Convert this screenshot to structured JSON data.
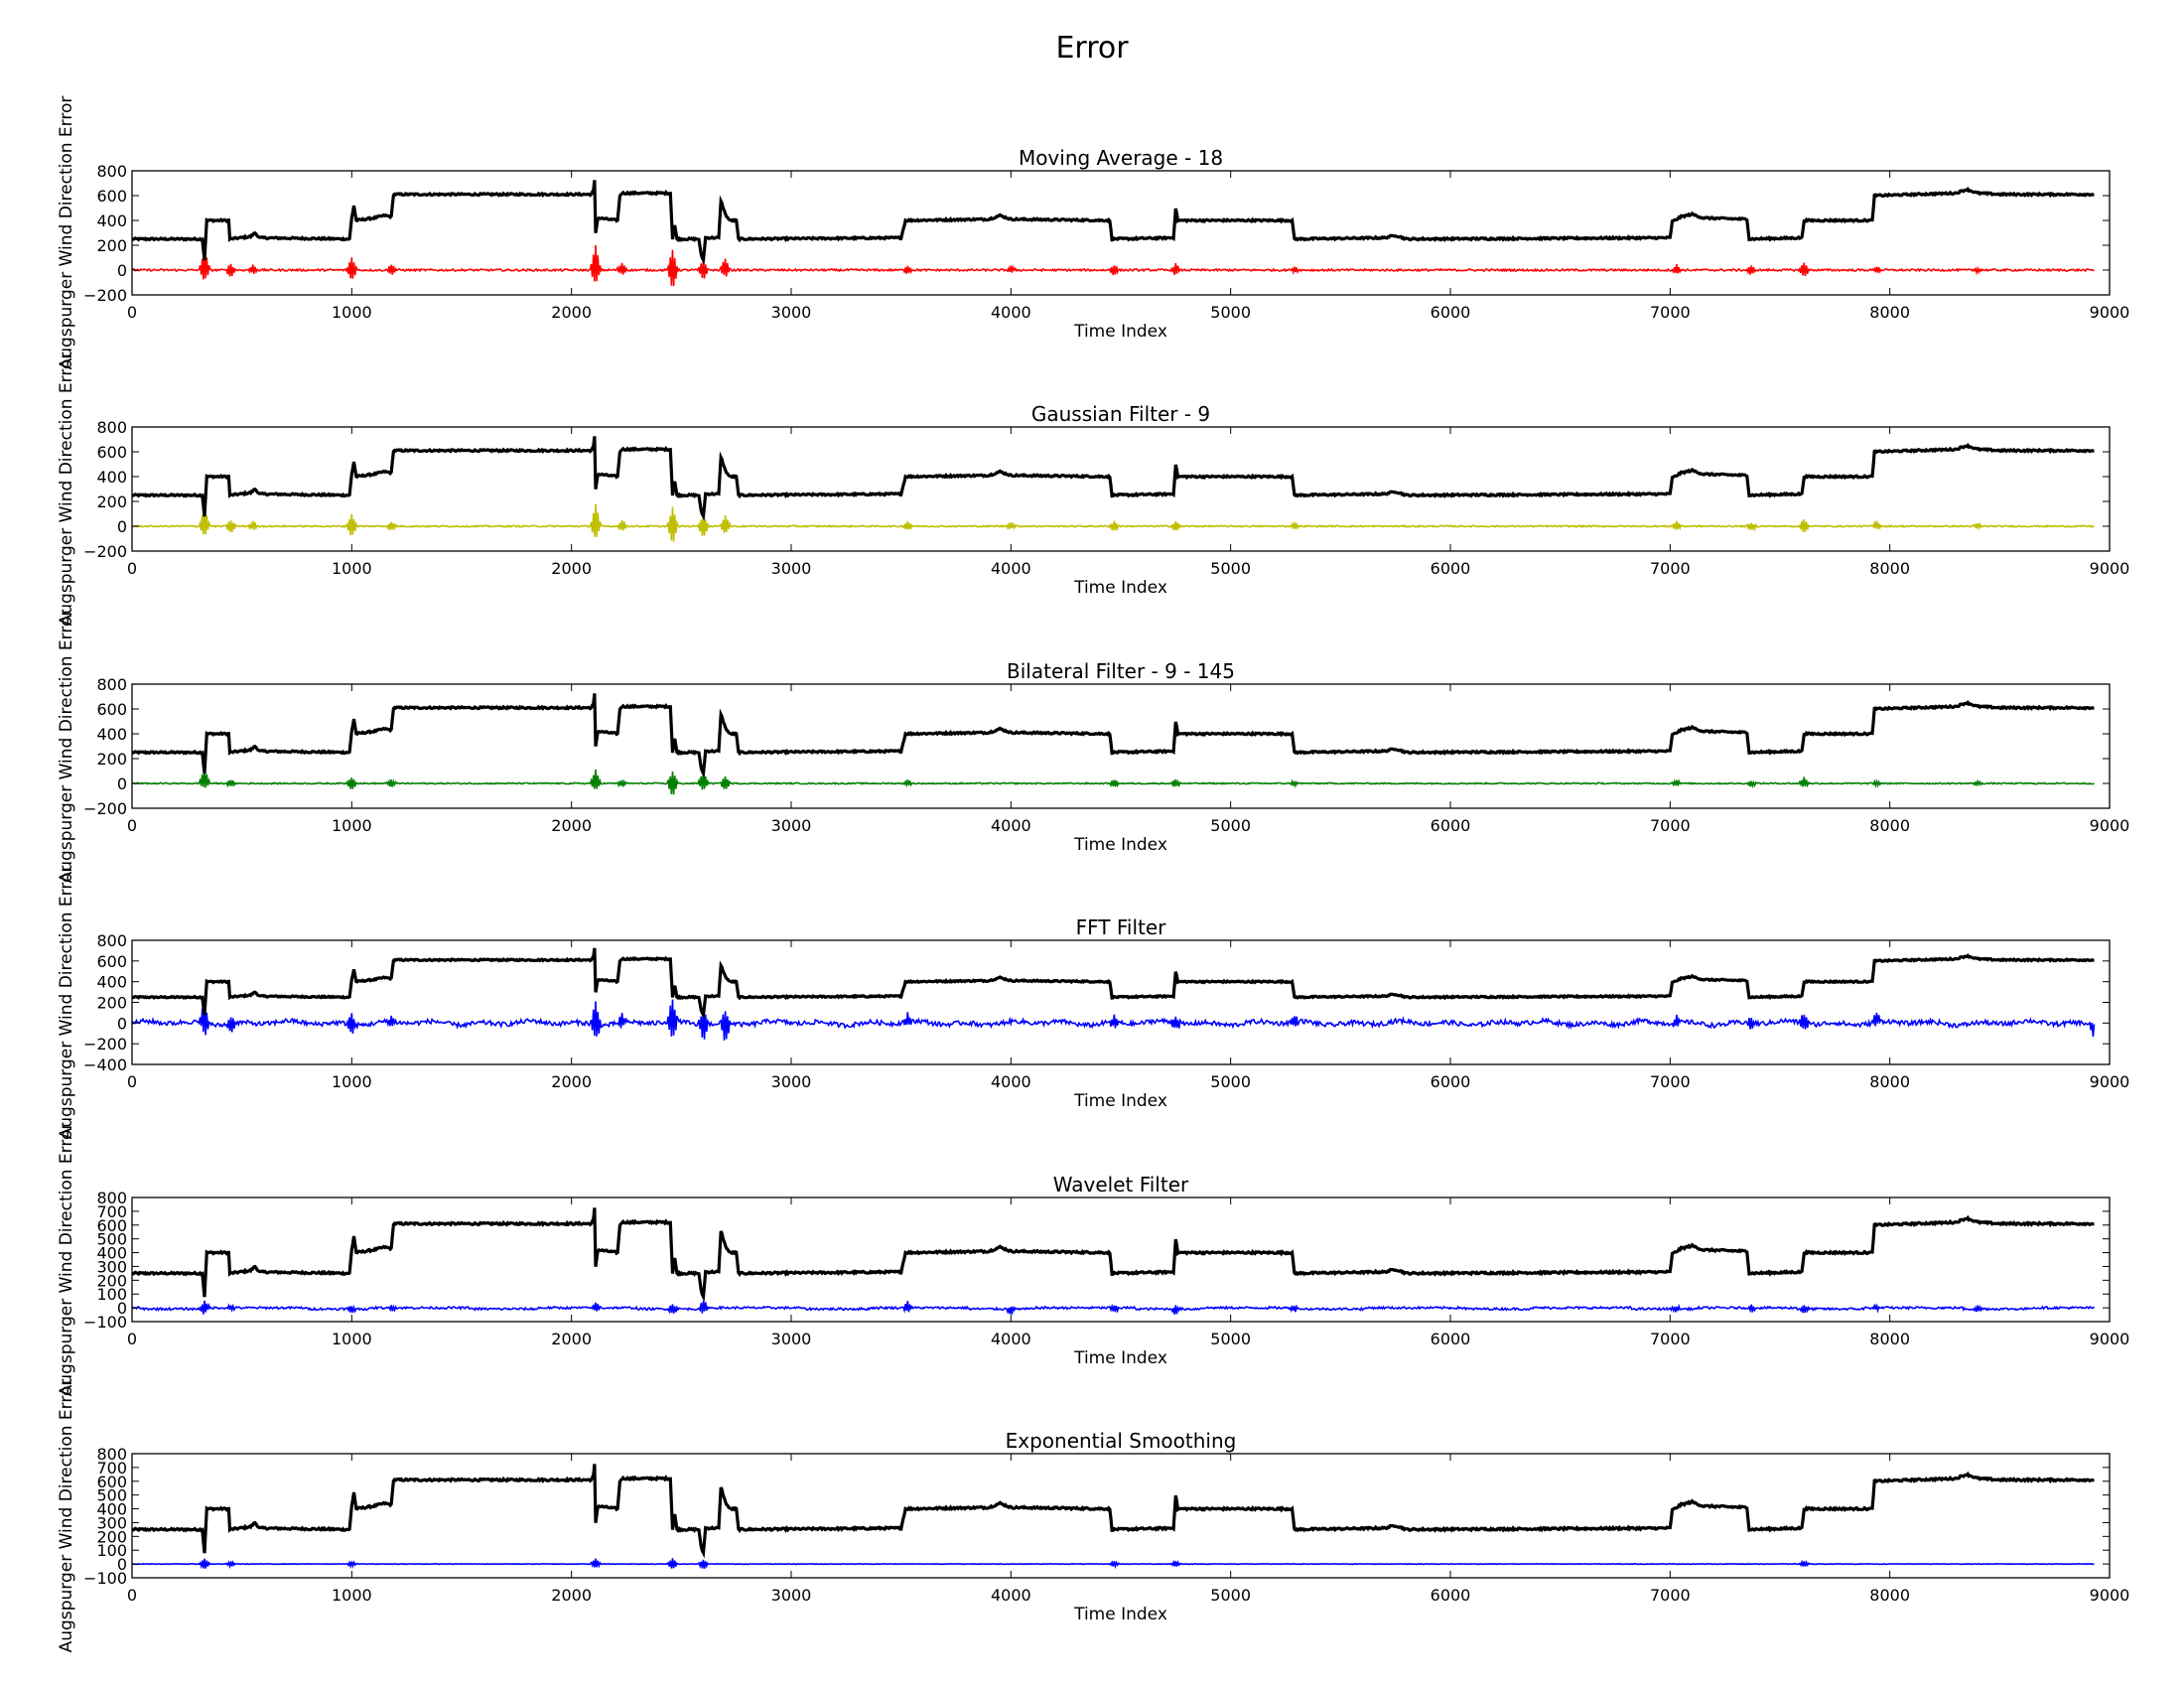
{
  "figure": {
    "title": "Error",
    "x_label": "Time Index",
    "y_label": "Augspurger Wind Direction Error"
  },
  "colors": {
    "signal": "#000000",
    "red": "#ff0000",
    "yellow": "#bfbf00",
    "green": "#008000",
    "blue": "#0000ff"
  },
  "chart_data": [
    {
      "type": "line",
      "title": "Moving Average - 18",
      "xlabel": "Time Index",
      "ylabel": "Augspurger Wind Direction Error",
      "xlim": [
        0,
        9000
      ],
      "ylim": [
        -200,
        800
      ],
      "x_ticks": [
        0,
        1000,
        2000,
        3000,
        4000,
        5000,
        6000,
        7000,
        8000,
        9000
      ],
      "y_ticks": [
        -200,
        0,
        200,
        400,
        600,
        800
      ],
      "error_color": "red",
      "error_noise": 8,
      "error_spikes": [
        [
          330,
          160,
          -90
        ],
        [
          450,
          50,
          -60
        ],
        [
          550,
          40,
          -30
        ],
        [
          1000,
          100,
          -80
        ],
        [
          1180,
          50,
          -40
        ],
        [
          2110,
          200,
          -120
        ],
        [
          2230,
          60,
          -40
        ],
        [
          2460,
          160,
          -160
        ],
        [
          2600,
          80,
          -80
        ],
        [
          2700,
          100,
          -60
        ],
        [
          3530,
          40,
          -30
        ],
        [
          4000,
          30,
          -20
        ],
        [
          4470,
          40,
          -40
        ],
        [
          4750,
          50,
          -40
        ],
        [
          5290,
          30,
          -20
        ],
        [
          7030,
          40,
          -30
        ],
        [
          7370,
          30,
          -40
        ],
        [
          7610,
          60,
          -60
        ],
        [
          7940,
          30,
          -20
        ],
        [
          8400,
          20,
          -20
        ]
      ],
      "grid": false,
      "legend": "none"
    },
    {
      "type": "line",
      "title": "Gaussian Filter - 9",
      "xlabel": "Time Index",
      "ylabel": "Augspurger Wind Direction Error",
      "xlim": [
        0,
        9000
      ],
      "ylim": [
        -200,
        800
      ],
      "x_ticks": [
        0,
        1000,
        2000,
        3000,
        4000,
        5000,
        6000,
        7000,
        8000,
        9000
      ],
      "y_ticks": [
        -200,
        0,
        200,
        400,
        600,
        800
      ],
      "error_color": "yellow",
      "error_noise": 6,
      "error_spikes": [
        [
          330,
          150,
          -80
        ],
        [
          450,
          50,
          -60
        ],
        [
          550,
          40,
          -30
        ],
        [
          1000,
          100,
          -90
        ],
        [
          1180,
          40,
          -40
        ],
        [
          2110,
          180,
          -110
        ],
        [
          2230,
          50,
          -40
        ],
        [
          2460,
          150,
          -150
        ],
        [
          2600,
          90,
          -90
        ],
        [
          2700,
          90,
          -60
        ],
        [
          3530,
          40,
          -30
        ],
        [
          4000,
          30,
          -20
        ],
        [
          4470,
          40,
          -40
        ],
        [
          4750,
          40,
          -40
        ],
        [
          5290,
          30,
          -20
        ],
        [
          7030,
          40,
          -30
        ],
        [
          7370,
          30,
          -40
        ],
        [
          7610,
          60,
          -60
        ],
        [
          7940,
          40,
          -20
        ],
        [
          8400,
          20,
          -20
        ]
      ],
      "grid": false,
      "legend": "none"
    },
    {
      "type": "line",
      "title": "Bilateral Filter - 9 - 145",
      "xlabel": "Time Index",
      "ylabel": "Augspurger Wind Direction Error",
      "xlim": [
        0,
        9000
      ],
      "ylim": [
        -200,
        800
      ],
      "x_ticks": [
        0,
        1000,
        2000,
        3000,
        4000,
        5000,
        6000,
        7000,
        8000,
        9000
      ],
      "y_ticks": [
        -200,
        0,
        200,
        400,
        600,
        800
      ],
      "error_color": "green",
      "error_noise": 5,
      "error_spikes": [
        [
          330,
          120,
          -40
        ],
        [
          450,
          30,
          -30
        ],
        [
          1000,
          50,
          -50
        ],
        [
          1180,
          30,
          -30
        ],
        [
          2110,
          110,
          -60
        ],
        [
          2230,
          30,
          -30
        ],
        [
          2460,
          100,
          -110
        ],
        [
          2600,
          100,
          -60
        ],
        [
          2700,
          60,
          -60
        ],
        [
          3530,
          30,
          -20
        ],
        [
          4470,
          30,
          -30
        ],
        [
          4750,
          30,
          -30
        ],
        [
          5290,
          20,
          -20
        ],
        [
          7030,
          30,
          -20
        ],
        [
          7370,
          20,
          -30
        ],
        [
          7610,
          50,
          -30
        ],
        [
          7940,
          20,
          -20
        ],
        [
          8400,
          15,
          -15
        ]
      ],
      "grid": false,
      "legend": "none"
    },
    {
      "type": "line",
      "title": "FFT Filter",
      "xlabel": "Time Index",
      "ylabel": "Augspurger Wind Direction Error",
      "xlim": [
        0,
        9000
      ],
      "ylim": [
        -400,
        800
      ],
      "x_ticks": [
        0,
        1000,
        2000,
        3000,
        4000,
        5000,
        6000,
        7000,
        8000,
        9000
      ],
      "y_ticks": [
        -400,
        -200,
        0,
        200,
        400,
        600,
        800
      ],
      "error_color": "blue",
      "error_noise": 22,
      "error_spikes": [
        [
          330,
          220,
          -120
        ],
        [
          450,
          60,
          -80
        ],
        [
          1000,
          100,
          -100
        ],
        [
          1180,
          60,
          -60
        ],
        [
          2110,
          220,
          -150
        ],
        [
          2230,
          80,
          -60
        ],
        [
          2460,
          220,
          -200
        ],
        [
          2600,
          150,
          -150
        ],
        [
          2700,
          100,
          -200
        ],
        [
          3530,
          80,
          -60
        ],
        [
          4470,
          60,
          -60
        ],
        [
          4750,
          80,
          -60
        ],
        [
          5290,
          50,
          -40
        ],
        [
          7030,
          60,
          -40
        ],
        [
          7370,
          40,
          -60
        ],
        [
          7610,
          100,
          -60
        ],
        [
          7940,
          100,
          -40
        ],
        [
          8930,
          20,
          -170
        ]
      ],
      "grid": false,
      "legend": "none"
    },
    {
      "type": "line",
      "title": "Wavelet Filter",
      "xlabel": "Time Index",
      "ylabel": "Augspurger Wind Direction Error",
      "xlim": [
        0,
        9000
      ],
      "ylim": [
        -100,
        800
      ],
      "x_ticks": [
        0,
        1000,
        2000,
        3000,
        4000,
        5000,
        6000,
        7000,
        8000,
        9000
      ],
      "y_ticks": [
        -100,
        0,
        100,
        200,
        300,
        400,
        500,
        600,
        700,
        800
      ],
      "error_color": "blue",
      "error_noise": 8,
      "error_spikes": [
        [
          330,
          60,
          -40
        ],
        [
          450,
          20,
          -20
        ],
        [
          1000,
          20,
          -30
        ],
        [
          1180,
          20,
          -20
        ],
        [
          2110,
          40,
          -30
        ],
        [
          2460,
          40,
          -40
        ],
        [
          2600,
          60,
          -40
        ],
        [
          3530,
          50,
          -30
        ],
        [
          4000,
          20,
          -40
        ],
        [
          4470,
          20,
          -40
        ],
        [
          4750,
          20,
          -40
        ],
        [
          5290,
          20,
          -30
        ],
        [
          7030,
          20,
          -20
        ],
        [
          7370,
          20,
          -30
        ],
        [
          7610,
          20,
          -30
        ],
        [
          7940,
          20,
          -20
        ],
        [
          8400,
          20,
          -20
        ]
      ],
      "grid": false,
      "legend": "none"
    },
    {
      "type": "line",
      "title": "Exponential Smoothing",
      "xlabel": "Time Index",
      "ylabel": "Augspurger Wind Direction Error",
      "xlim": [
        0,
        9000
      ],
      "ylim": [
        -100,
        800
      ],
      "x_ticks": [
        0,
        1000,
        2000,
        3000,
        4000,
        5000,
        6000,
        7000,
        8000,
        9000
      ],
      "y_ticks": [
        -100,
        0,
        100,
        200,
        300,
        400,
        500,
        600,
        700,
        800
      ],
      "error_color": "blue",
      "error_noise": 2,
      "error_spikes": [
        [
          330,
          40,
          -40
        ],
        [
          450,
          20,
          -20
        ],
        [
          1000,
          20,
          -20
        ],
        [
          2110,
          40,
          -30
        ],
        [
          2460,
          40,
          -40
        ],
        [
          2600,
          30,
          -40
        ],
        [
          4470,
          20,
          -20
        ],
        [
          4750,
          20,
          -20
        ],
        [
          7610,
          20,
          -20
        ]
      ],
      "grid": false,
      "legend": "none"
    }
  ],
  "signal_series": {
    "note_color": "black",
    "segments": [
      [
        0,
        250
      ],
      [
        320,
        250
      ],
      [
        330,
        80
      ],
      [
        340,
        400
      ],
      [
        440,
        400
      ],
      [
        445,
        250
      ],
      [
        540,
        270
      ],
      [
        560,
        300
      ],
      [
        580,
        260
      ],
      [
        990,
        250
      ],
      [
        1000,
        420
      ],
      [
        1010,
        520
      ],
      [
        1020,
        400
      ],
      [
        1100,
        420
      ],
      [
        1150,
        440
      ],
      [
        1180,
        430
      ],
      [
        1190,
        610
      ],
      [
        2090,
        610
      ],
      [
        2100,
        640
      ],
      [
        2105,
        720
      ],
      [
        2110,
        300
      ],
      [
        2120,
        420
      ],
      [
        2210,
        400
      ],
      [
        2220,
        600
      ],
      [
        2230,
        620
      ],
      [
        2450,
        620
      ],
      [
        2460,
        250
      ],
      [
        2470,
        360
      ],
      [
        2480,
        250
      ],
      [
        2580,
        250
      ],
      [
        2590,
        120
      ],
      [
        2600,
        80
      ],
      [
        2610,
        260
      ],
      [
        2670,
        260
      ],
      [
        2680,
        560
      ],
      [
        2700,
        450
      ],
      [
        2720,
        400
      ],
      [
        2750,
        400
      ],
      [
        2760,
        250
      ],
      [
        3500,
        260
      ],
      [
        3510,
        330
      ],
      [
        3520,
        400
      ],
      [
        3900,
        410
      ],
      [
        3950,
        440
      ],
      [
        4000,
        410
      ],
      [
        4450,
        400
      ],
      [
        4460,
        250
      ],
      [
        4740,
        260
      ],
      [
        4750,
        500
      ],
      [
        4760,
        400
      ],
      [
        5280,
        400
      ],
      [
        5290,
        250
      ],
      [
        5700,
        260
      ],
      [
        5750,
        280
      ],
      [
        5800,
        250
      ],
      [
        7000,
        260
      ],
      [
        7010,
        390
      ],
      [
        7050,
        430
      ],
      [
        7100,
        450
      ],
      [
        7150,
        420
      ],
      [
        7350,
        410
      ],
      [
        7360,
        250
      ],
      [
        7600,
        260
      ],
      [
        7610,
        400
      ],
      [
        7920,
        400
      ],
      [
        7930,
        600
      ],
      [
        8300,
        620
      ],
      [
        8350,
        650
      ],
      [
        8400,
        620
      ],
      [
        8500,
        610
      ],
      [
        8930,
        610
      ]
    ]
  }
}
